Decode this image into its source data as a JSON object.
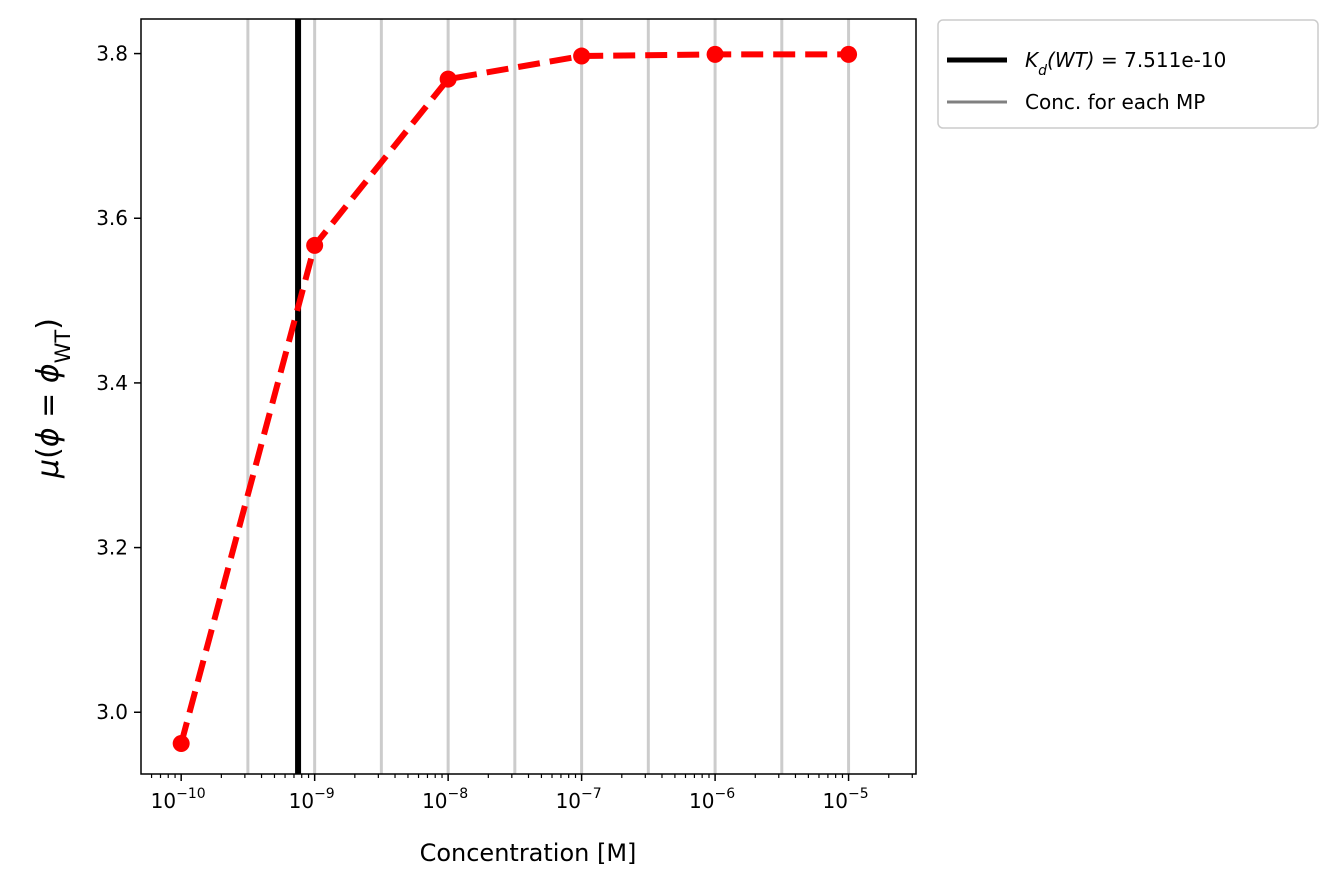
{
  "chart_data": {
    "type": "line",
    "x_scale": "log",
    "xlabel": "Concentration [M]",
    "ylabel": "μ(ϕ = ϕ_WT)",
    "xlim": [
      5e-11,
      3.2e-05
    ],
    "ylim": [
      2.925,
      3.842
    ],
    "x_ticks": [
      1e-10,
      1e-09,
      1e-08,
      1e-07,
      1e-06,
      1e-05
    ],
    "x_tick_labels": [
      {
        "base": "10",
        "exp": "−10"
      },
      {
        "base": "10",
        "exp": "−9"
      },
      {
        "base": "10",
        "exp": "−8"
      },
      {
        "base": "10",
        "exp": "−7"
      },
      {
        "base": "10",
        "exp": "−6"
      },
      {
        "base": "10",
        "exp": "−5"
      }
    ],
    "y_ticks": [
      3.0,
      3.2,
      3.4,
      3.6,
      3.8
    ],
    "y_tick_labels": [
      "3.0",
      "3.2",
      "3.4",
      "3.6",
      "3.8"
    ],
    "series": [
      {
        "x": [
          1e-10,
          1e-09,
          1e-08,
          1e-07,
          1e-06,
          1e-05
        ],
        "y": [
          2.962,
          3.567,
          3.769,
          3.797,
          3.799,
          3.799
        ],
        "color": "#ff0000",
        "style": "dashed",
        "marker": "circle"
      }
    ],
    "kd_line": {
      "x": 7.511e-10,
      "color": "#000000",
      "label_symbol": "K",
      "label_sub": "d",
      "label_paren": "(WT)",
      "label_value": " = 7.511e-10"
    },
    "mp_lines": {
      "x": [
        3.16e-10,
        1e-09,
        3.16e-09,
        1e-08,
        3.16e-08,
        1e-07,
        3.16e-07,
        1e-06,
        3.16e-06,
        1e-05
      ],
      "color": "#cccccc",
      "label": "Conc. for each MP",
      "legend_color": "#808080"
    },
    "legend_position": "outside-upper-right"
  }
}
